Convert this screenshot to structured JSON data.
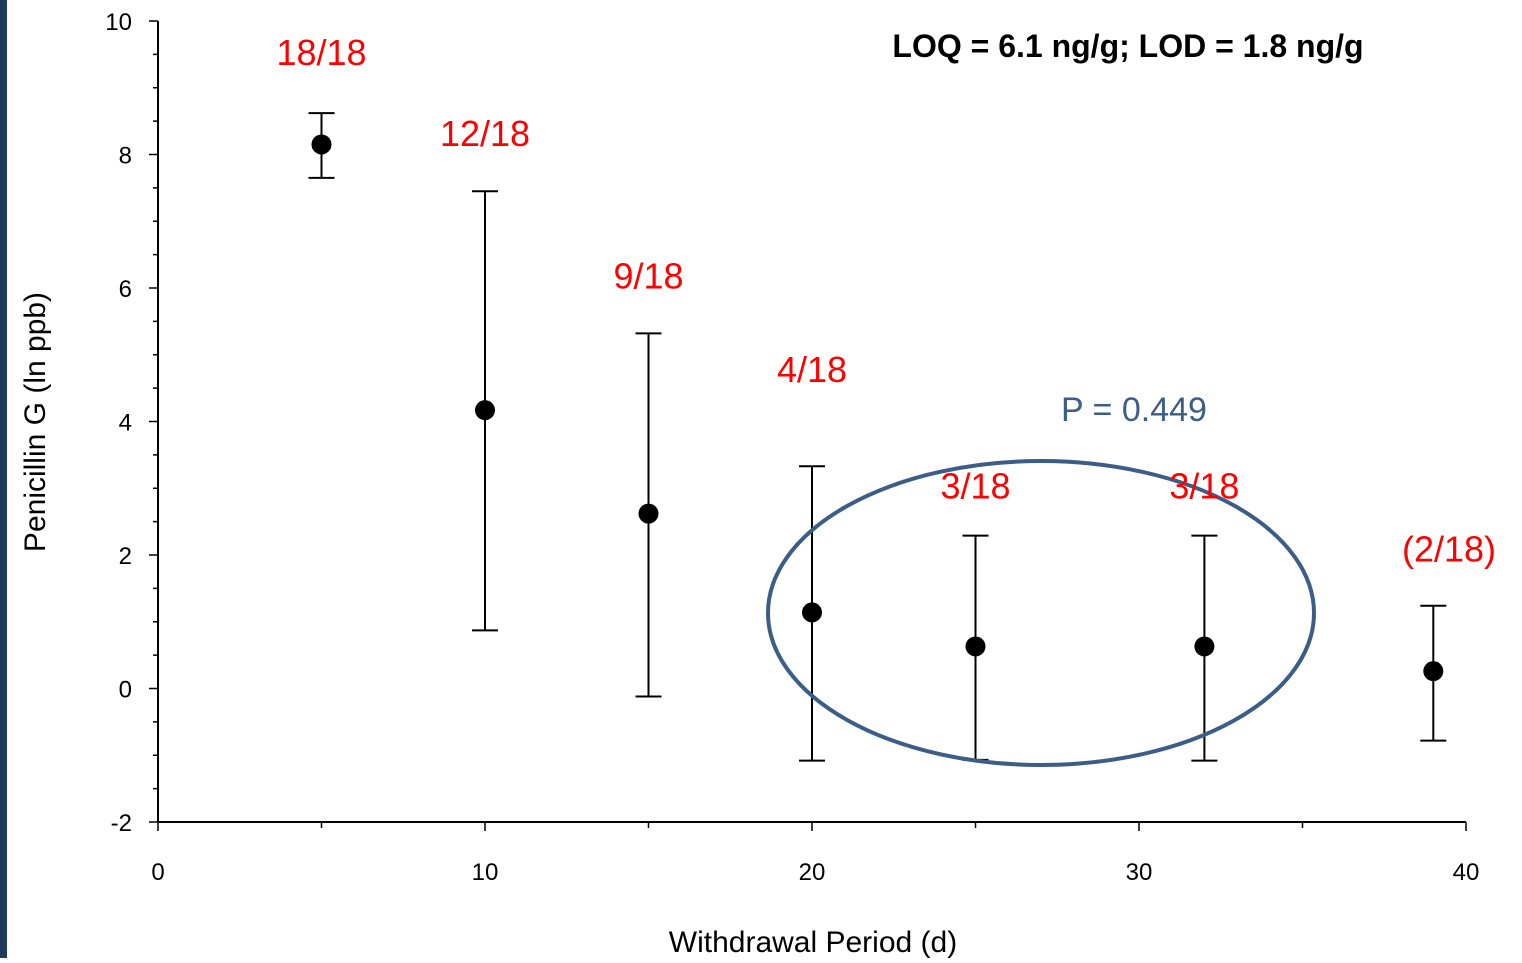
{
  "chart_data": {
    "type": "scatter",
    "title": "",
    "xlabel": "Withdrawal Period (d)",
    "ylabel": "Penicillin G (ln ppb)",
    "xlim": [
      0,
      40
    ],
    "ylim": [
      -2,
      10
    ],
    "x_ticks": [
      "0",
      "10",
      "20",
      "30",
      "40"
    ],
    "y_ticks": [
      "-2",
      "0",
      "2",
      "4",
      "6",
      "8",
      "10"
    ],
    "grid": false,
    "points": [
      {
        "x": 5,
        "y": 8.15,
        "err_low": 7.65,
        "err_high": 8.62,
        "label": "18/18"
      },
      {
        "x": 10,
        "y": 4.17,
        "err_low": 0.87,
        "err_high": 7.45,
        "label": "12/18"
      },
      {
        "x": 15,
        "y": 2.62,
        "err_low": -0.12,
        "err_high": 5.32,
        "label": "9/18"
      },
      {
        "x": 20,
        "y": 1.14,
        "err_low": -1.08,
        "err_high": 3.33,
        "label": "4/18"
      },
      {
        "x": 25,
        "y": 0.63,
        "err_low": -1.07,
        "err_high": 2.29,
        "label": "3/18"
      },
      {
        "x": 32,
        "y": 0.63,
        "err_low": -1.08,
        "err_high": 2.29,
        "label": "3/18"
      },
      {
        "x": 39,
        "y": 0.26,
        "err_low": -0.78,
        "err_high": 1.24,
        "label": "(2/18)"
      }
    ],
    "annotations": {
      "header_note": "LOQ = 6.1 ng/g; LOD = 1.8 ng/g",
      "p_value": "P = 0.449"
    },
    "colors": {
      "points": "#000000",
      "labels": "#ff0000",
      "ellipse": "#3c5d85",
      "frame_bar": "#1f3b5e"
    }
  }
}
